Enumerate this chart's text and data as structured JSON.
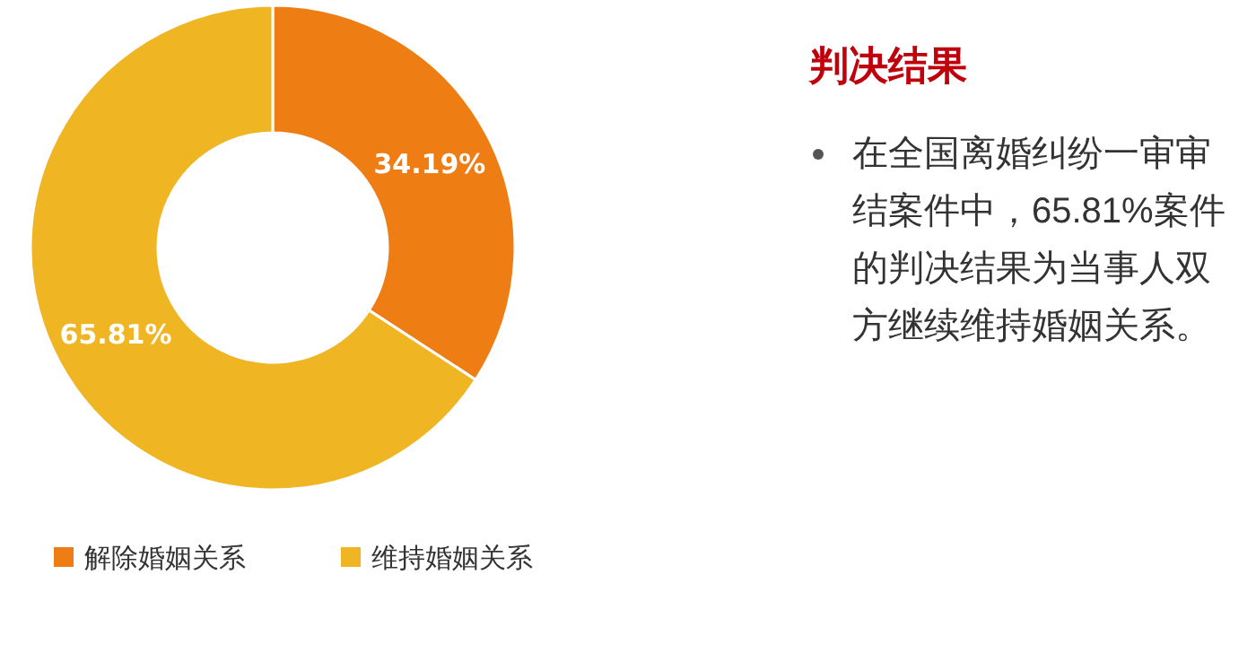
{
  "chart_data": {
    "type": "donut",
    "title": "判决结果",
    "categories": [
      "解除婚姻关系",
      "维持婚姻关系"
    ],
    "values": [
      34.19,
      65.81
    ],
    "colors": [
      "#ee7d14",
      "#f0b523"
    ],
    "value_labels": [
      "34.19%",
      "65.81%"
    ],
    "legend": "bottom",
    "annotations": [
      "在全国离婚纠纷一审审结案件中，65.81%案件的判决结果为当事人双方继续维持婚姻关系。"
    ]
  }
}
